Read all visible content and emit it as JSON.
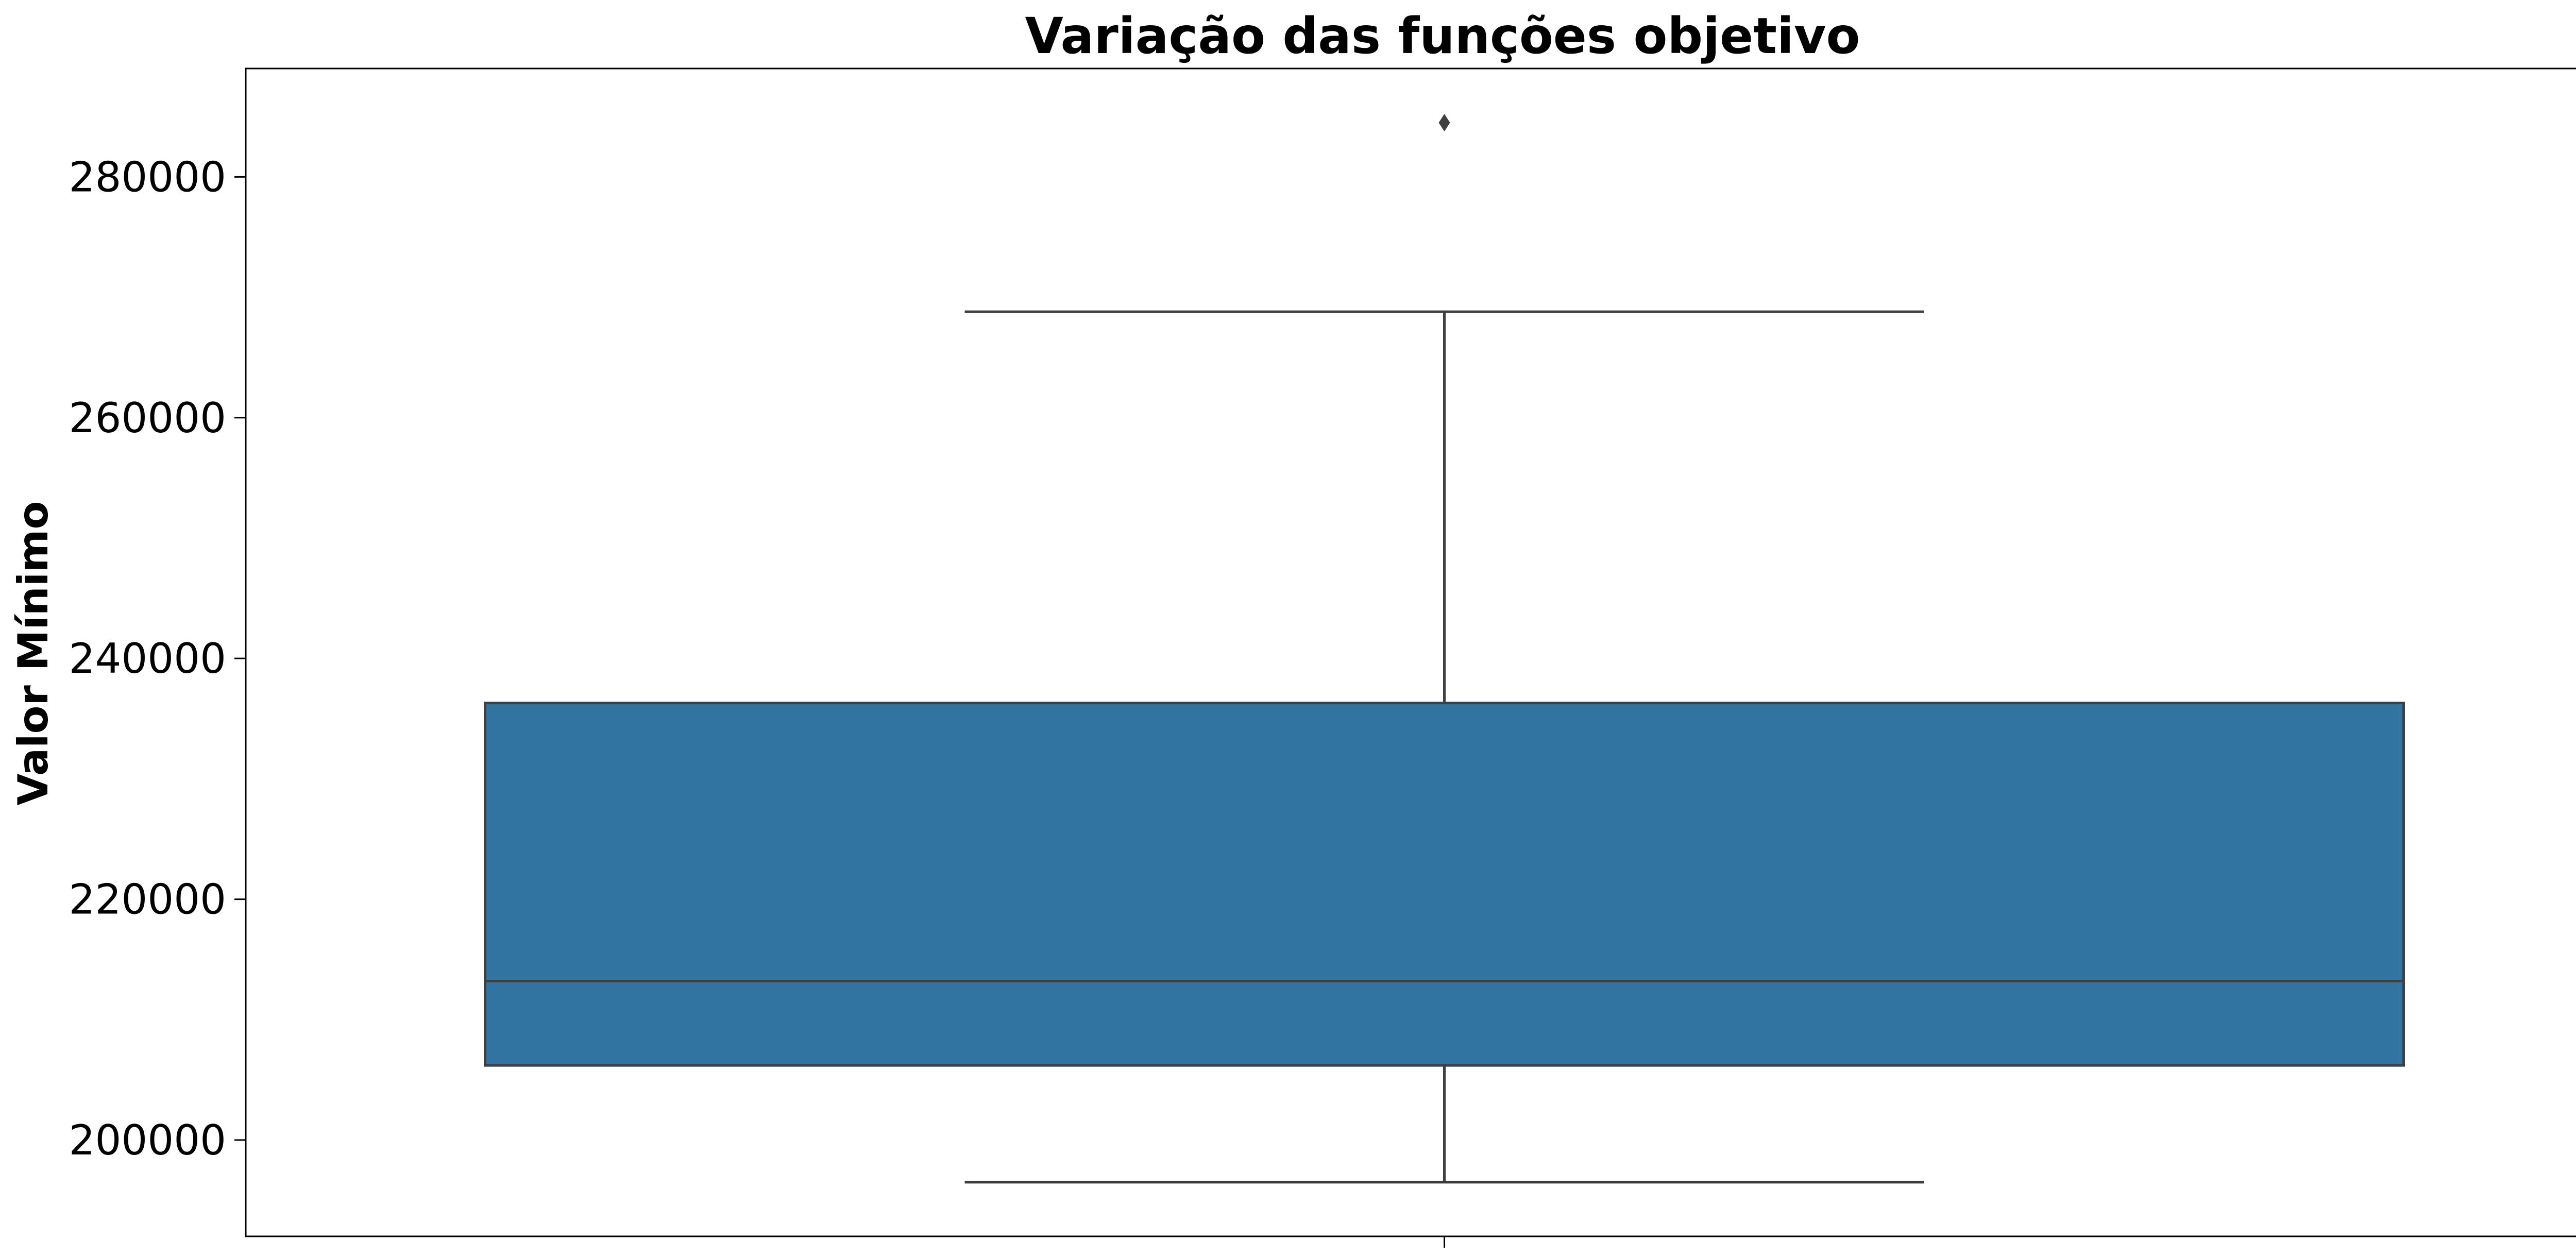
{
  "chart_data": {
    "type": "box",
    "title": "Variação das funções objetivo",
    "xlabel": "",
    "ylabel": "Valor Mínimo",
    "ylim": [
      192000,
      289000
    ],
    "yticks": [
      200000,
      220000,
      240000,
      260000,
      280000
    ],
    "ytick_labels": [
      "200000",
      "220000",
      "240000",
      "260000",
      "280000"
    ],
    "grid": false,
    "box": {
      "whisker_low": 196500,
      "q1": 206200,
      "median": 213200,
      "q3": 236300,
      "whisker_high": 268800,
      "outliers": [
        284500
      ]
    },
    "colors": {
      "box_fill": "#3274a1",
      "line": "#3f3f3f",
      "axes": "#000000"
    }
  }
}
